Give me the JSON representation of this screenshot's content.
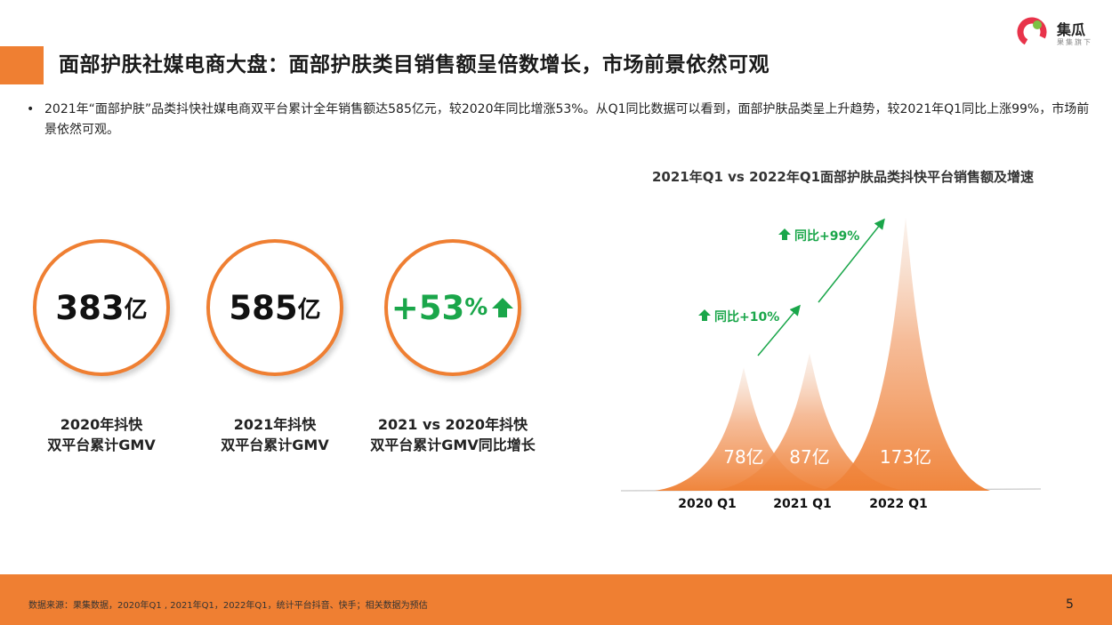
{
  "header": {
    "title": "面部护肤社媒电商大盘：面部护肤类目销售额呈倍数增长，市场前景依然可观"
  },
  "logo": {
    "name": "集瓜",
    "tagline": "果集旗下"
  },
  "summary": {
    "bullet": "•",
    "text": "2021年“面部护肤”品类抖快社媒电商双平台累计全年销售额达585亿元，较2020年同比增涨53%。从Q1同比数据可以看到，面部护肤品类呈上升趋势，较2021年Q1同比上涨99%，市场前景依然可观。"
  },
  "kpis": [
    {
      "value": "383",
      "unit": "亿",
      "label_line1": "2020年抖快",
      "label_line2": "双平台累计GMV"
    },
    {
      "value": "585",
      "unit": "亿",
      "label_line1": "2021年抖快",
      "label_line2": "双平台累计GMV"
    },
    {
      "value": "+53",
      "unit": "%",
      "label_line1": "2021 vs 2020年抖快",
      "label_line2": "双平台累计GMV同比增长"
    }
  ],
  "chart_data": {
    "type": "area",
    "title": "2021年Q1 vs 2022年Q1面部护肤品类抖快平台销售额及增速",
    "categories": [
      "2020 Q1",
      "2021 Q1",
      "2022 Q1"
    ],
    "values": [
      78,
      87,
      173
    ],
    "value_labels": [
      "78亿",
      "87亿",
      "173亿"
    ],
    "annotations": [
      "同比+10%",
      "同比+99%"
    ],
    "ylim": [
      0,
      180
    ],
    "colors": {
      "peak_top": "#f6e6dc",
      "peak_base": "#ef7f32",
      "arrow": "#1aa64a"
    }
  },
  "footer": {
    "source": "数据来源：果集数据，2020年Q1 , 2021年Q1，2022年Q1，统计平台抖音、快手；相关数据为预估",
    "page_number": "5"
  }
}
